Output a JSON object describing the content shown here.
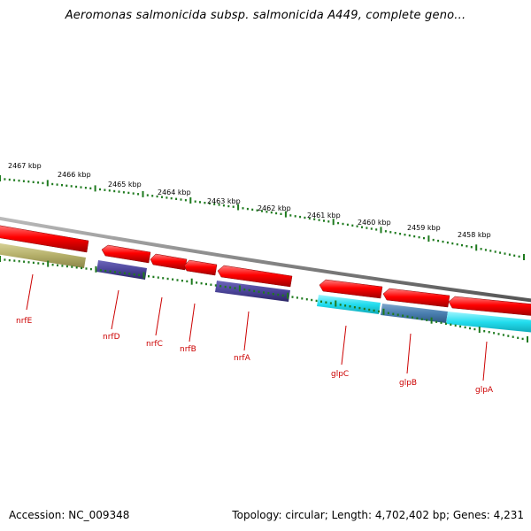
{
  "title": "Aeromonas salmonicida subsp. salmonicida A449, complete geno...",
  "scale_labels": [
    "2467 kbp",
    "2466 kbp",
    "2465 kbp",
    "2464 kbp",
    "2463 kbp",
    "2462 kbp",
    "2461 kbp",
    "2460 kbp",
    "2459 kbp",
    "2458 kbp"
  ],
  "genes": [
    "nrfE",
    "nrfD",
    "nrfC",
    "nrfB",
    "nrfA",
    "glpC",
    "glpB",
    "glpA"
  ],
  "footer": {
    "accession": "Accession: NC_009348",
    "summary": "Topology: circular; Length: 4,702,402 bp; Genes: 4,231"
  },
  "colors": {
    "forward_gene": "#ff0000",
    "ruler": "#1e7a1e",
    "backbone": "#888888",
    "cog_olive": "#b5b06a",
    "cog_indigo": "#4b4499",
    "cog_cyan": "#22ddee",
    "cog_steel": "#4a7fb0",
    "label": "#cc0000"
  }
}
